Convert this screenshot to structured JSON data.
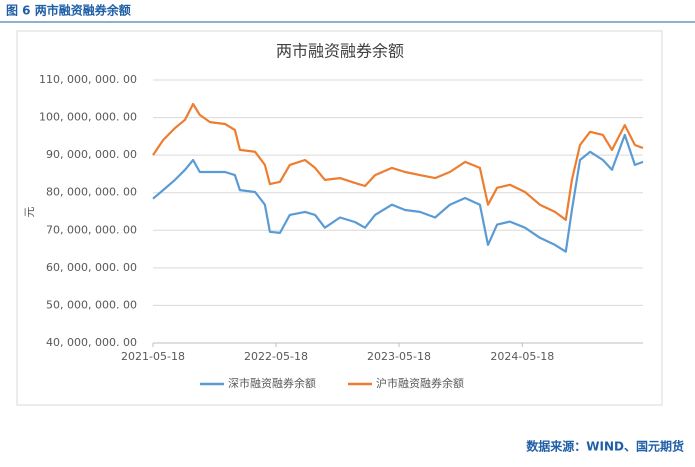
{
  "header": {
    "title": "图 6 两市融资融券余额"
  },
  "chart_data": {
    "type": "line",
    "title": "两市融资融券余额",
    "y_label": "元",
    "x": [
      "2021-05-18",
      "2021-06-17",
      "2021-07-22",
      "2021-08-21",
      "2021-09-14",
      "2021-10-04",
      "2021-11-03",
      "2021-12-18",
      "2022-01-16",
      "2022-01-31",
      "2022-03-17",
      "2022-04-15",
      "2022-04-30",
      "2022-05-30",
      "2022-06-28",
      "2022-08-12",
      "2022-09-11",
      "2022-10-10",
      "2022-11-24",
      "2023-01-07",
      "2023-02-06",
      "2023-03-08",
      "2023-04-27",
      "2023-06-05",
      "2023-07-19",
      "2023-09-02",
      "2023-10-16",
      "2023-11-30",
      "2024-01-13",
      "2024-02-06",
      "2024-03-04",
      "2024-04-11",
      "2024-05-26",
      "2024-07-09",
      "2024-08-23",
      "2024-09-24",
      "2024-10-12",
      "2024-11-05",
      "2024-12-05",
      "2025-01-12",
      "2025-02-08",
      "2025-03-18",
      "2025-04-17",
      "2025-05-11"
    ],
    "series": [
      {
        "name": "深市融资融券余额",
        "color": "#5b9bd5",
        "values": [
          78400000,
          80700000,
          83400000,
          86100000,
          88700000,
          85500000,
          85500000,
          85500000,
          84700000,
          80700000,
          80200000,
          76800000,
          69600000,
          69300000,
          74100000,
          74900000,
          74100000,
          70700000,
          73400000,
          72200000,
          70700000,
          74100000,
          76800000,
          75400000,
          74900000,
          73400000,
          76800000,
          78600000,
          76800000,
          66100000,
          71500000,
          72300000,
          70700000,
          68000000,
          66100000,
          64300000,
          75400000,
          88700000,
          90900000,
          88700000,
          86100000,
          95400000,
          87400000,
          88200000
        ]
      },
      {
        "name": "沪市融资融券余额",
        "color": "#ed7d31",
        "values": [
          90000000,
          94000000,
          97200000,
          99400000,
          103600000,
          100700000,
          98800000,
          98300000,
          96700000,
          91400000,
          90900000,
          87400000,
          82300000,
          82900000,
          87400000,
          88700000,
          86600000,
          83400000,
          83900000,
          82600000,
          81800000,
          84700000,
          86600000,
          85500000,
          84700000,
          83900000,
          85500000,
          88200000,
          86600000,
          76800000,
          81300000,
          82100000,
          80200000,
          76800000,
          74900000,
          72800000,
          83400000,
          92700000,
          96200000,
          95400000,
          91400000,
          98000000,
          92700000,
          91900000
        ]
      }
    ],
    "xlim": [
      "2021-05-18",
      "2025-05-11"
    ],
    "xticks": [
      "2021-05-18",
      "2022-05-18",
      "2023-05-18",
      "2024-05-18"
    ],
    "ylim": [
      40000000,
      110000000
    ],
    "yticks": [
      {
        "value": 40000000,
        "label": "40, 000, 000. 00"
      },
      {
        "value": 50000000,
        "label": "50, 000, 000. 00"
      },
      {
        "value": 60000000,
        "label": "60, 000, 000. 00"
      },
      {
        "value": 70000000,
        "label": "70, 000, 000. 00"
      },
      {
        "value": 80000000,
        "label": "80, 000, 000. 00"
      },
      {
        "value": 90000000,
        "label": "90, 000, 000. 00"
      },
      {
        "value": 100000000,
        "label": "100, 000, 000. 00"
      },
      {
        "value": 110000000,
        "label": "110, 000, 000. 00"
      }
    ],
    "grid": true,
    "legend": "bottom"
  },
  "footer": {
    "source": "数据来源：WIND、国元期货"
  }
}
